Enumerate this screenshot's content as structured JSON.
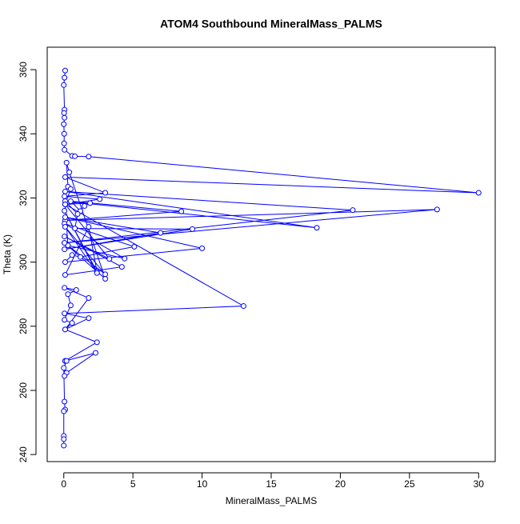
{
  "chart_data": {
    "type": "line",
    "title": "ATOM4 Southbound MineralMass_PALMS",
    "x_label": "MineralMass_PALMS",
    "y_label": "Theta (K)",
    "color": "#0000ff",
    "markers": "open-circle",
    "x": [
      0.1,
      0.05,
      0.0,
      0.05,
      0.02,
      0.05,
      0.0,
      0.03,
      0.02,
      0.05,
      0.6,
      0.8,
      1.8,
      30.0,
      0.1,
      3.0,
      0.05,
      2.6,
      0.1,
      1.9,
      1.5,
      1.2,
      0.5,
      8.5,
      0.1,
      27.0,
      0.05,
      20.9,
      0.1,
      18.3,
      0.1,
      1.0,
      0.8,
      9.3,
      0.05,
      7.0,
      0.1,
      10.0,
      0.1,
      0.6,
      1.2,
      5.1,
      0.05,
      4.4,
      0.3,
      0.1,
      3.3,
      0.05,
      4.2,
      0.1,
      1.8,
      2.4,
      0.05,
      2.4,
      0.1,
      3.0,
      0.05,
      3.0,
      0.4,
      0.2,
      0.3,
      0.5,
      0.1,
      13.0,
      0.05,
      1.8,
      0.1,
      1.8,
      0.05,
      0.9,
      0.3,
      0.5,
      0.05,
      0.6,
      0.1,
      2.4,
      0.1,
      2.3,
      0.2,
      0.05,
      0.1,
      0.2,
      0.0,
      0.05,
      0.1,
      0.0,
      0.0,
      0.0,
      0.0
    ],
    "values": [
      359.7,
      357.5,
      355.2,
      347.5,
      346.5,
      345,
      343,
      340,
      337,
      335,
      333.1,
      333.0,
      332.9,
      321.6,
      326.5,
      321.6,
      320.5,
      319.6,
      318,
      318.4,
      317.5,
      315.9,
      319,
      315.8,
      313,
      316.4,
      306,
      316.2,
      322,
      310.7,
      319,
      315,
      310.5,
      310.3,
      304,
      309.1,
      314,
      304.3,
      300,
      302.2,
      301.6,
      304.8,
      312,
      301.1,
      305.2,
      318,
      301.0,
      308,
      298.5,
      296,
      311.0,
      297.0,
      316,
      296.6,
      311,
      296.2,
      306,
      294.8,
      328,
      331,
      323.5,
      322.8,
      318,
      286.3,
      284,
      282.5,
      279,
      288.8,
      292,
      291.3,
      290,
      286.5,
      282,
      281,
      279,
      275.0,
      269.2,
      271.7,
      265.5,
      264.5,
      269.2,
      269.2,
      267,
      256.5,
      254,
      253.5,
      245.8,
      244.8,
      242.8
    ],
    "xlim": [
      -1.2,
      31.2
    ],
    "ylim": [
      237.8,
      367
    ],
    "xticks": [
      0,
      5,
      10,
      15,
      20,
      25,
      30
    ],
    "yticks": [
      240,
      260,
      280,
      300,
      320,
      340,
      360
    ]
  }
}
